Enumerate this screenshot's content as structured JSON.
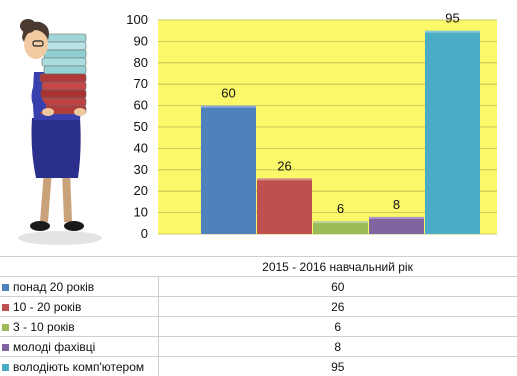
{
  "chart_data": {
    "type": "bar",
    "categories": [
      "2015 - 2016 навчальний рік"
    ],
    "series": [
      {
        "name": "понад 20 років",
        "values": [
          60
        ],
        "color": "#4f81bd"
      },
      {
        "name": "10 - 20 років",
        "values": [
          26
        ],
        "color": "#c0504d"
      },
      {
        "name": "3 - 10 років",
        "values": [
          6
        ],
        "color": "#9bbb59"
      },
      {
        "name": "молоді фахівці",
        "values": [
          8
        ],
        "color": "#8064a2"
      },
      {
        "name": "володіють комп'ютером",
        "values": [
          95
        ],
        "color": "#4bacc6"
      }
    ],
    "ylim": [
      0,
      100
    ],
    "yticks": [
      0,
      10,
      20,
      30,
      40,
      50,
      60,
      70,
      80,
      90,
      100
    ],
    "grid": true,
    "plot_background": "#fbf86a",
    "legend": "data-table-below"
  },
  "illustration": {
    "icon": "teacher-with-books-icon"
  }
}
